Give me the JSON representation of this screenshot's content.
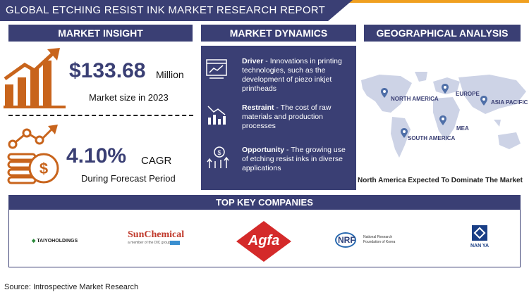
{
  "header": {
    "title": "GLOBAL ETCHING RESIST INK MARKET RESEARCH REPORT"
  },
  "market_insight": {
    "heading": "MARKET INSIGHT",
    "market_value": "$133.68",
    "market_unit": "Million",
    "market_caption": "Market size in 2023",
    "cagr_value": "4.10%",
    "cagr_unit": "CAGR",
    "cagr_caption": "During Forecast Period"
  },
  "market_dynamics": {
    "heading": "MARKET DYNAMICS",
    "items": [
      {
        "label": "Driver",
        "text": " - Innovations in printing technologies, such as the development of piezo inkjet printheads",
        "icon": "browser-chart-icon"
      },
      {
        "label": "Restraint",
        "text": " - The cost of raw materials and production processes",
        "icon": "declining-chart-icon"
      },
      {
        "label": "Opportunity",
        "text": " - The growing use of etching resist inks in diverse applications",
        "icon": "growth-money-icon"
      }
    ]
  },
  "geographical_analysis": {
    "heading": "GEOGRAPHICAL ANALYSIS",
    "regions": [
      "NORTH AMERICA",
      "EUROPE",
      "ASIA PACIFIC",
      "MEA",
      "SOUTH AMERICA"
    ],
    "caption": "North America Expected To Dominate The Market"
  },
  "top_companies": {
    "heading": "TOP KEY COMPANIES",
    "logos": {
      "taiyo": "TAIYOHOLDINGS",
      "sun_main": "SunChemical",
      "sun_sub": "a member of the DIC group",
      "agfa": "Agfa",
      "nrf_mark": "NRF",
      "nrf_line1": "National Research",
      "nrf_line2": "Foundation of Korea",
      "nanya": "NAN YA"
    }
  },
  "footer": {
    "source": "Source: Introspective Market Research"
  },
  "colors": {
    "navy": "#3a3f74",
    "orange": "#c8641c",
    "accent": "#f0a020"
  }
}
